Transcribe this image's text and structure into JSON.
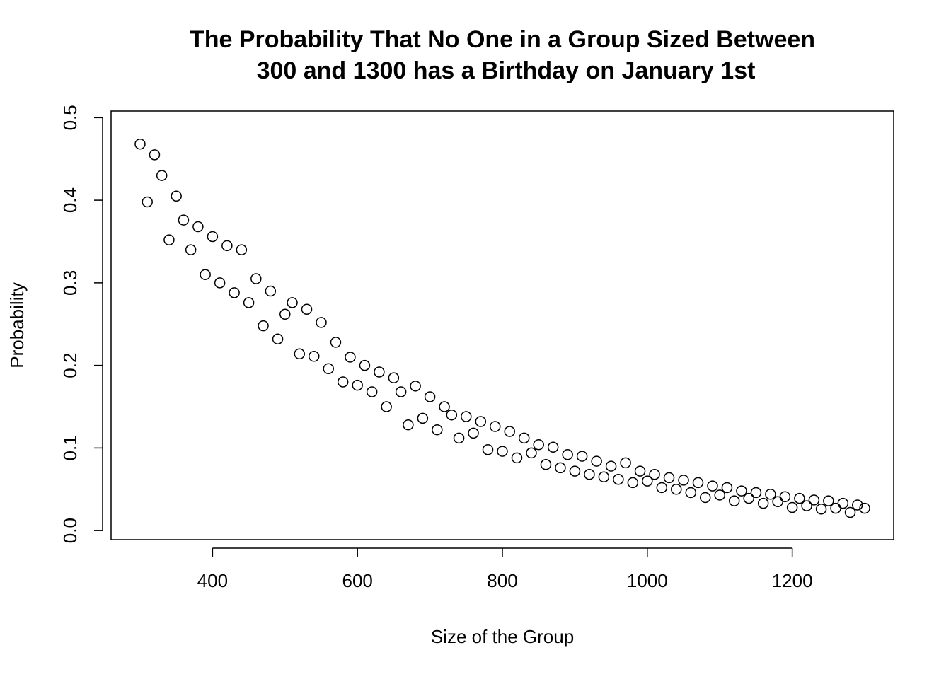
{
  "chart_data": {
    "type": "scatter",
    "title": [
      "The Probability That No One in a Group Sized Between",
      "300 and 1300 has a Birthday on January 1st"
    ],
    "x_label": "Size of the Group",
    "y_label": "Probability",
    "xlim": [
      260,
      1340
    ],
    "ylim": [
      -0.011,
      0.508
    ],
    "xticks": [
      400,
      600,
      800,
      1000,
      1200
    ],
    "yticks": [
      {
        "value": 0,
        "label": "0.0"
      },
      0.1,
      0.2,
      0.3,
      0.4,
      0.5
    ],
    "color": "#000000",
    "grid": false,
    "x": [
      300,
      310,
      320,
      330,
      340,
      350,
      360,
      370,
      380,
      390,
      400,
      410,
      420,
      430,
      440,
      450,
      460,
      470,
      480,
      490,
      500,
      510,
      520,
      530,
      540,
      550,
      560,
      570,
      580,
      590,
      600,
      610,
      620,
      630,
      640,
      650,
      660,
      670,
      680,
      690,
      700,
      710,
      720,
      730,
      740,
      750,
      760,
      770,
      780,
      790,
      800,
      810,
      820,
      830,
      840,
      850,
      860,
      870,
      880,
      890,
      900,
      910,
      920,
      930,
      940,
      950,
      960,
      970,
      980,
      990,
      1000,
      1010,
      1020,
      1030,
      1040,
      1050,
      1060,
      1070,
      1080,
      1090,
      1100,
      1110,
      1120,
      1130,
      1140,
      1150,
      1160,
      1170,
      1180,
      1190,
      1200,
      1210,
      1220,
      1230,
      1240,
      1250,
      1260,
      1270,
      1280,
      1290,
      1300
    ],
    "values": [
      0.468,
      0.398,
      0.455,
      0.43,
      0.352,
      0.405,
      0.376,
      0.34,
      0.368,
      0.31,
      0.356,
      0.3,
      0.345,
      0.288,
      0.34,
      0.276,
      0.305,
      0.248,
      0.29,
      0.232,
      0.262,
      0.276,
      0.214,
      0.268,
      0.211,
      0.252,
      0.196,
      0.228,
      0.18,
      0.21,
      0.176,
      0.2,
      0.168,
      0.192,
      0.15,
      0.185,
      0.168,
      0.128,
      0.175,
      0.136,
      0.162,
      0.122,
      0.15,
      0.14,
      0.112,
      0.138,
      0.118,
      0.132,
      0.098,
      0.126,
      0.096,
      0.12,
      0.088,
      0.112,
      0.094,
      0.104,
      0.08,
      0.101,
      0.076,
      0.092,
      0.072,
      0.09,
      0.068,
      0.084,
      0.065,
      0.078,
      0.062,
      0.082,
      0.058,
      0.072,
      0.06,
      0.068,
      0.052,
      0.064,
      0.05,
      0.061,
      0.046,
      0.058,
      0.04,
      0.054,
      0.043,
      0.052,
      0.036,
      0.048,
      0.039,
      0.046,
      0.033,
      0.044,
      0.035,
      0.041,
      0.028,
      0.039,
      0.03,
      0.037,
      0.026,
      0.036,
      0.027,
      0.033,
      0.022,
      0.031,
      0.027
    ]
  }
}
